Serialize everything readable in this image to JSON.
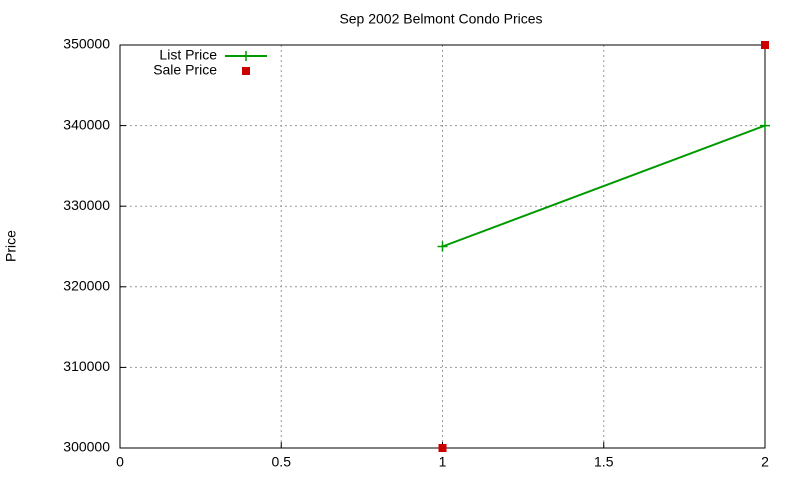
{
  "chart_data": {
    "type": "line",
    "title": "Sep 2002 Belmont Condo Prices",
    "y_label": "Price",
    "series": [
      {
        "name": "List Price",
        "color": "#009900",
        "style": "linespoints",
        "marker": "plus",
        "x": [
          1,
          2
        ],
        "values": [
          325000,
          340000
        ]
      },
      {
        "name": "Sale Price",
        "color": "#cc0000",
        "style": "points",
        "marker": "square",
        "x": [
          1,
          2
        ],
        "values": [
          300000,
          350000
        ]
      }
    ],
    "xlim": [
      0,
      2
    ],
    "xticks": [
      0,
      0.5,
      1,
      1.5,
      2
    ],
    "ylim": [
      300000,
      350000
    ],
    "yticks": [
      300000,
      310000,
      320000,
      330000,
      340000,
      350000
    ],
    "grid": true,
    "legend": "top-left"
  }
}
